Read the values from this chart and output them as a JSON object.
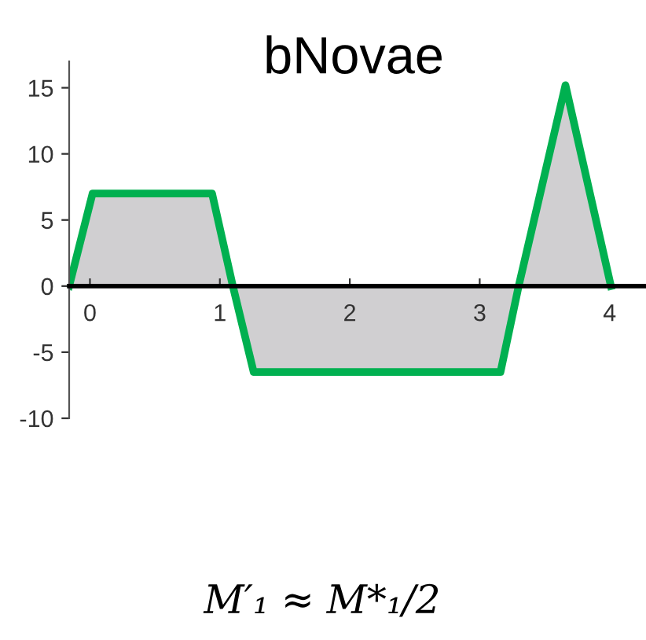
{
  "chart_data": {
    "type": "area",
    "title": "bNovae",
    "x": [
      -0.16,
      0.02,
      0.94,
      1.1,
      1.26,
      3.16,
      3.3,
      3.66,
      4.01
    ],
    "series": [
      {
        "color": "#00b050",
        "values": [
          0,
          7,
          7,
          0,
          -6.5,
          -6.5,
          0,
          15.2,
          0
        ]
      }
    ],
    "xlim": [
      -0.16,
      4.28
    ],
    "xticks": [
      0,
      1,
      2,
      3,
      4
    ],
    "ylim": [
      -10,
      17
    ],
    "yticks": [
      -10,
      -5,
      0,
      5,
      10,
      15
    ],
    "grid": false,
    "annotations": [
      "M′₁ ≈ M*₁/2"
    ]
  }
}
